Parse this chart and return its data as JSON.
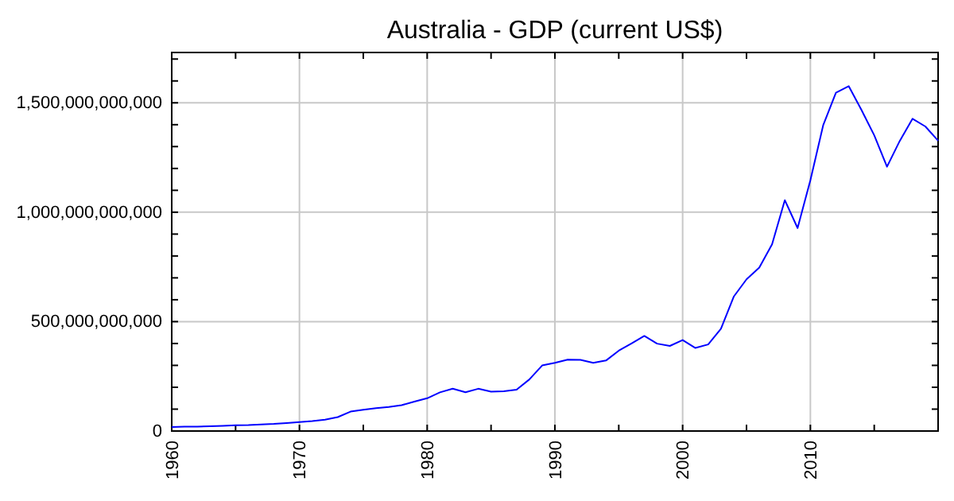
{
  "chart_data": {
    "type": "line",
    "title": "Australia - GDP (current US$)",
    "x": [
      1960,
      1961,
      1962,
      1963,
      1964,
      1965,
      1966,
      1967,
      1968,
      1969,
      1970,
      1971,
      1972,
      1973,
      1974,
      1975,
      1976,
      1977,
      1978,
      1979,
      1980,
      1981,
      1982,
      1983,
      1984,
      1985,
      1986,
      1987,
      1988,
      1989,
      1990,
      1991,
      1992,
      1993,
      1994,
      1995,
      1996,
      1997,
      1998,
      1999,
      2000,
      2001,
      2002,
      2003,
      2004,
      2005,
      2006,
      2007,
      2008,
      2009,
      2010,
      2011,
      2012,
      2013,
      2014,
      2015,
      2016,
      2017,
      2018,
      2019,
      2020
    ],
    "series": [
      {
        "color": "#0000ff",
        "values": [
          18600000000,
          19700000000,
          19900000000,
          21500000000,
          23800000000,
          25900000000,
          27300000000,
          30400000000,
          32700000000,
          36600000000,
          41300000000,
          45200000000,
          52000000000,
          63700000000,
          88800000000,
          97200000000,
          104900000000,
          110200000000,
          118300000000,
          134600000000,
          149800000000,
          176600000000,
          193800000000,
          176900000000,
          193200000000,
          180200000000,
          182000000000,
          189100000000,
          235700000000,
          299600000000,
          311400000000,
          325900000000,
          325300000000,
          311600000000,
          322200000000,
          367200000000,
          400300000000,
          434600000000,
          399300000000,
          389000000000,
          415800000000,
          379600000000,
          395600000000,
          467500000000,
          614200000000,
          693300000000,
          746900000000,
          853100000000,
          1055100000000,
          927800000000,
          1146100000000,
          1396700000000,
          1546200000000,
          1576200000000,
          1467500000000,
          1351500000000,
          1208000000000,
          1326000000000,
          1427000000000,
          1392000000000,
          1327000000000
        ]
      }
    ],
    "xlim": [
      1960,
      2020
    ],
    "xticks": [
      1960,
      {
        "value": 1965,
        "label": null
      },
      1970,
      {
        "value": 1975,
        "label": null
      },
      1980,
      {
        "value": 1985,
        "label": null
      },
      1990,
      {
        "value": 1995,
        "label": null
      },
      2000,
      {
        "value": 2005,
        "label": null
      },
      2010,
      {
        "value": 2015,
        "label": null
      }
    ],
    "ylim": [
      0,
      1730000000000
    ],
    "yticks": [
      {
        "value": 0,
        "label": "0"
      },
      {
        "value": 100000000000,
        "label": null
      },
      {
        "value": 200000000000,
        "label": null
      },
      {
        "value": 300000000000,
        "label": null
      },
      {
        "value": 400000000000,
        "label": null
      },
      {
        "value": 500000000000,
        "label": "500,000,000,000"
      },
      {
        "value": 600000000000,
        "label": null
      },
      {
        "value": 700000000000,
        "label": null
      },
      {
        "value": 800000000000,
        "label": null
      },
      {
        "value": 900000000000,
        "label": null
      },
      {
        "value": 1000000000000,
        "label": "1,000,000,000,000"
      },
      {
        "value": 1100000000000,
        "label": null
      },
      {
        "value": 1200000000000,
        "label": null
      },
      {
        "value": 1300000000000,
        "label": null
      },
      {
        "value": 1400000000000,
        "label": null
      },
      {
        "value": 1500000000000,
        "label": "1,500,000,000,000"
      },
      {
        "value": 1600000000000,
        "label": null
      },
      {
        "value": 1700000000000,
        "label": null
      }
    ],
    "grid": true
  }
}
